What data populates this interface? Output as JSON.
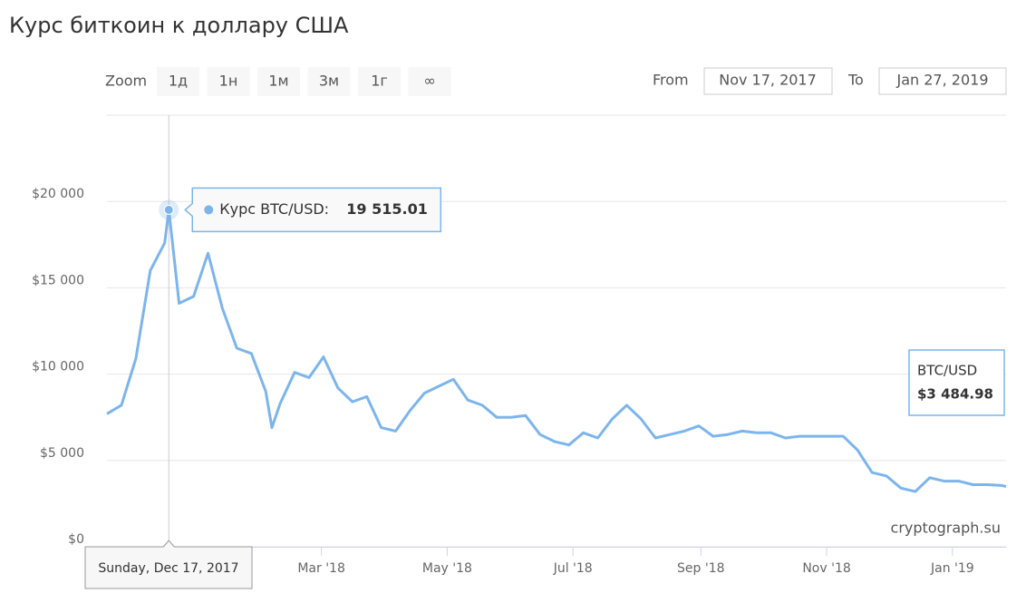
{
  "chart_data": {
    "type": "line",
    "title": "Курс биткоин к доллару США",
    "zoom": {
      "label": "Zoom",
      "buttons": [
        "1д",
        "1н",
        "1м",
        "3м",
        "1г",
        "∞"
      ]
    },
    "range": {
      "from_label": "From",
      "from": "Nov 17, 2017",
      "to_label": "To",
      "to": "Jan 27, 2019"
    },
    "x": [
      "2017-11-17",
      "2017-11-24",
      "2017-12-01",
      "2017-12-08",
      "2017-12-15",
      "2017-12-17",
      "2017-12-22",
      "2017-12-29",
      "2018-01-05",
      "2018-01-12",
      "2018-01-19",
      "2018-01-26",
      "2018-02-02",
      "2018-02-05",
      "2018-02-09",
      "2018-02-16",
      "2018-02-23",
      "2018-03-02",
      "2018-03-09",
      "2018-03-16",
      "2018-03-23",
      "2018-03-30",
      "2018-04-06",
      "2018-04-13",
      "2018-04-20",
      "2018-04-27",
      "2018-05-04",
      "2018-05-11",
      "2018-05-18",
      "2018-05-25",
      "2018-06-01",
      "2018-06-08",
      "2018-06-15",
      "2018-06-22",
      "2018-06-29",
      "2018-07-06",
      "2018-07-13",
      "2018-07-20",
      "2018-07-27",
      "2018-08-03",
      "2018-08-10",
      "2018-08-17",
      "2018-08-24",
      "2018-08-31",
      "2018-09-07",
      "2018-09-14",
      "2018-09-21",
      "2018-09-28",
      "2018-10-05",
      "2018-10-12",
      "2018-10-19",
      "2018-10-26",
      "2018-11-02",
      "2018-11-09",
      "2018-11-16",
      "2018-11-23",
      "2018-11-30",
      "2018-12-07",
      "2018-12-14",
      "2018-12-21",
      "2018-12-28",
      "2019-01-04",
      "2019-01-11",
      "2019-01-18",
      "2019-01-25",
      "2019-01-27"
    ],
    "series": [
      {
        "name": "BTC/USD",
        "color": "#7cb5ec",
        "values": [
          7700,
          8200,
          10900,
          16000,
          17600,
          19515.01,
          14100,
          14500,
          17000,
          13800,
          11500,
          11200,
          9000,
          6900,
          8300,
          10100,
          9800,
          11000,
          9200,
          8400,
          8700,
          6900,
          6700,
          7900,
          8900,
          9300,
          9700,
          8500,
          8200,
          7500,
          7500,
          7600,
          6500,
          6100,
          5900,
          6600,
          6300,
          7400,
          8200,
          7400,
          6300,
          6500,
          6700,
          7000,
          6400,
          6500,
          6700,
          6600,
          6600,
          6300,
          6400,
          6400,
          6400,
          6400,
          5600,
          4300,
          4100,
          3400,
          3200,
          4000,
          3800,
          3800,
          3600,
          3600,
          3550,
          3484.98
        ]
      }
    ],
    "highlight": {
      "x_label": "Sunday, Dec 17, 2017",
      "series_label": "Курс BTC/USD:",
      "value_label": "19 515.01"
    },
    "last_price": {
      "name": "BTC/USD",
      "value_label": "$3 484.98"
    },
    "credits": "cryptograph.su",
    "xlim": [
      "2017-11-17",
      "2019-01-27"
    ],
    "xticks": [
      {
        "value": "2018-03-01",
        "label": "Mar '18"
      },
      {
        "value": "2018-05-01",
        "label": "May '18"
      },
      {
        "value": "2018-07-01",
        "label": "Jul '18"
      },
      {
        "value": "2018-09-01",
        "label": "Sep '18"
      },
      {
        "value": "2018-11-01",
        "label": "Nov '18"
      },
      {
        "value": "2019-01-01",
        "label": "Jan '19"
      }
    ],
    "ylim": [
      0,
      25000
    ],
    "yticks": [
      {
        "value": 0,
        "label": "$0"
      },
      {
        "value": 5000,
        "label": "$5 000"
      },
      {
        "value": 10000,
        "label": "$10 000"
      },
      {
        "value": 15000,
        "label": "$15 000"
      },
      {
        "value": 20000,
        "label": "$20 000"
      }
    ],
    "grid": true
  }
}
